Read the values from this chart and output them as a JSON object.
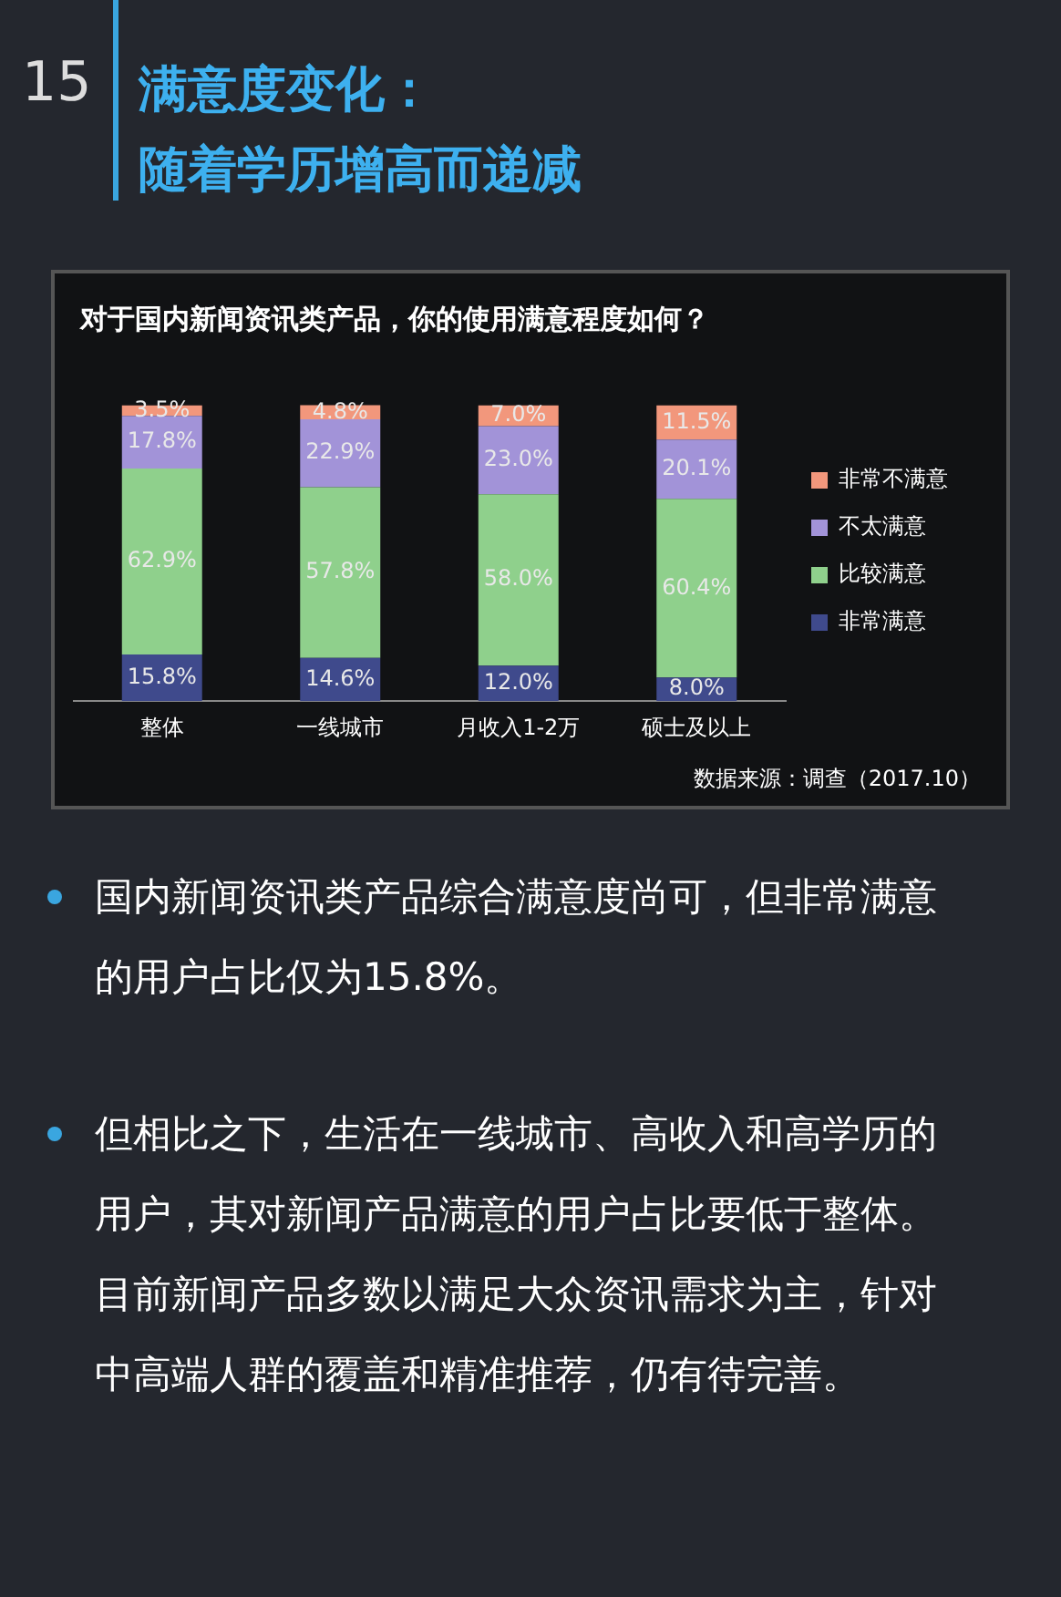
{
  "chart_data": {
    "type": "bar",
    "stacked": true,
    "legend": "right",
    "title": "满意度变化：随着学历增高而递减",
    "subtitle": "对于国内新闻资讯类产品，你的使用满意程度如何？",
    "categories": [
      "整体",
      "一线城市",
      "月收入1-2万",
      "硕士及以上"
    ],
    "series": [
      {
        "name": "非常满意",
        "color": "#3f4a8c",
        "values": [
          15.8,
          14.6,
          12.0,
          8.0
        ],
        "value_labels": [
          "15.8%",
          "14.6%",
          "12.0%",
          "8.0%"
        ]
      },
      {
        "name": "比较满意",
        "color": "#8fd08c",
        "values": [
          62.9,
          57.8,
          58.0,
          60.4
        ],
        "value_labels": [
          "62.9%",
          "57.8%",
          "58.0%",
          "60.4%"
        ]
      },
      {
        "name": "不太满意",
        "color": "#a293d8",
        "values": [
          17.8,
          22.9,
          23.0,
          20.1
        ],
        "value_labels": [
          "17.8%",
          "22.9%",
          "23.0%",
          "20.1%"
        ]
      },
      {
        "name": "非常不满意",
        "color": "#f2977c",
        "values": [
          3.5,
          4.8,
          7.0,
          11.5
        ],
        "value_labels": [
          "3.5%",
          "4.8%",
          "7.0%",
          "11.5%"
        ]
      }
    ],
    "annotations": [
      "15",
      "数据来源：调查（2017.10）",
      "国内新闻资讯类产品综合满意度尚可，但非常满意的用户占比仅为15.8%。",
      "但相比之下，生活在一线城市、高收入和高学历的用户，其对新闻产品满意的用户占比要低于整体。目前新闻产品多数以满足大众资讯需求为主，针对中高端人群的覆盖和精准推荐，仍有待完善。"
    ]
  }
}
